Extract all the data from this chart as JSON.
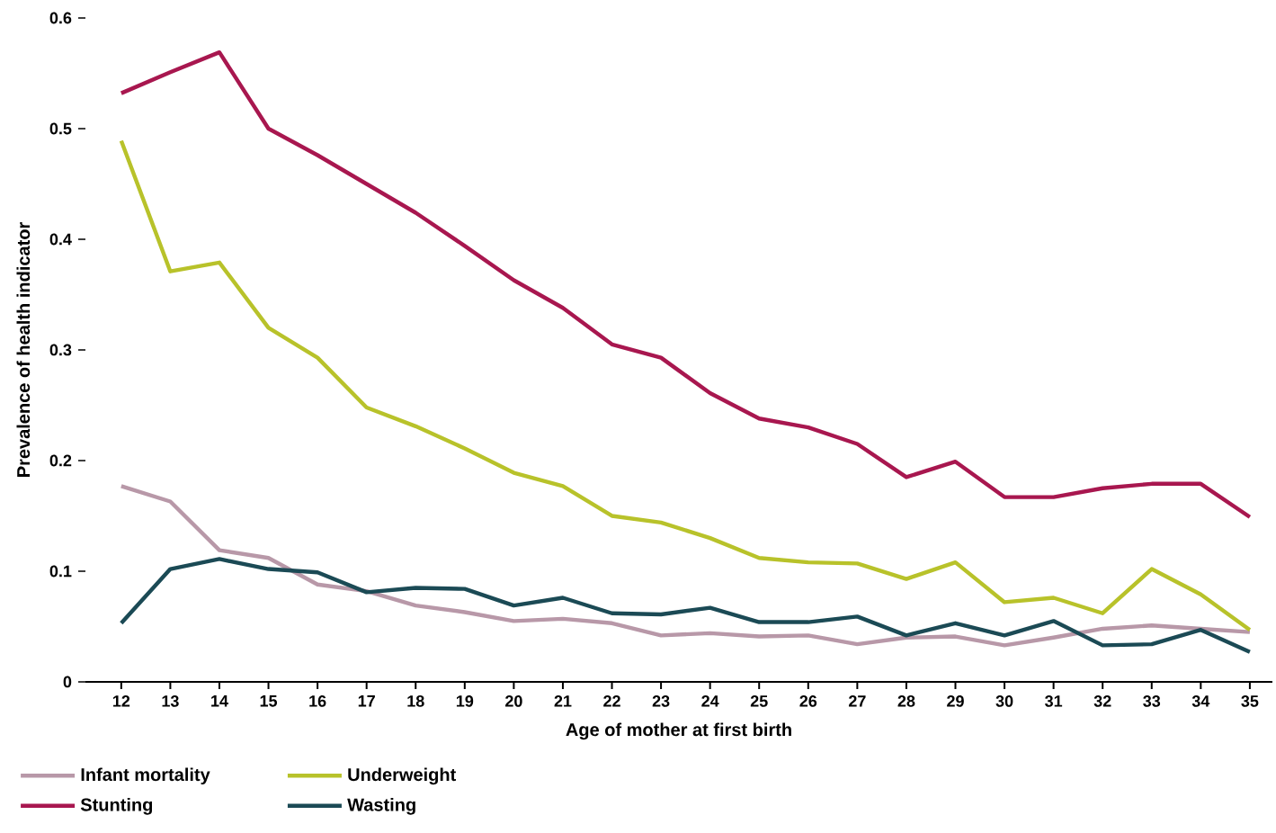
{
  "chart_data": {
    "type": "line",
    "xlabel": "Age of mother at first birth",
    "ylabel": "Prevalence of health indicator",
    "x": [
      12,
      13,
      14,
      15,
      16,
      17,
      18,
      19,
      20,
      21,
      22,
      23,
      24,
      25,
      26,
      27,
      28,
      29,
      30,
      31,
      32,
      33,
      34,
      35
    ],
    "series": [
      {
        "name": "Infant mortality",
        "color": "#b898a8",
        "values": [
          0.177,
          0.163,
          0.119,
          0.112,
          0.088,
          0.082,
          0.069,
          0.063,
          0.055,
          0.057,
          0.053,
          0.042,
          0.044,
          0.041,
          0.042,
          0.034,
          0.04,
          0.041,
          0.033,
          0.04,
          0.048,
          0.051,
          0.048,
          0.045
        ]
      },
      {
        "name": "Underweight",
        "color": "#b8c22a",
        "values": [
          0.489,
          0.371,
          0.379,
          0.32,
          0.293,
          0.248,
          0.231,
          0.211,
          0.189,
          0.177,
          0.15,
          0.144,
          0.13,
          0.112,
          0.108,
          0.107,
          0.093,
          0.108,
          0.072,
          0.076,
          0.062,
          0.102,
          0.079,
          0.047
        ]
      },
      {
        "name": "Stunting",
        "color": "#a8174f",
        "values": [
          0.532,
          0.551,
          0.569,
          0.5,
          0.476,
          0.45,
          0.424,
          0.394,
          0.363,
          0.338,
          0.305,
          0.293,
          0.261,
          0.238,
          0.23,
          0.215,
          0.185,
          0.199,
          0.167,
          0.167,
          0.175,
          0.179,
          0.179,
          0.149
        ]
      },
      {
        "name": "Wasting",
        "color": "#1b4a55",
        "values": [
          0.053,
          0.102,
          0.111,
          0.102,
          0.099,
          0.081,
          0.085,
          0.084,
          0.069,
          0.076,
          0.062,
          0.061,
          0.067,
          0.054,
          0.054,
          0.059,
          0.042,
          0.053,
          0.042,
          0.055,
          0.033,
          0.034,
          0.047,
          0.027
        ]
      }
    ],
    "xlim": [
      11.27,
      35.46
    ],
    "ylim": [
      0,
      0.6
    ],
    "xticks": [
      12,
      13,
      14,
      15,
      16,
      17,
      18,
      19,
      20,
      21,
      22,
      23,
      24,
      25,
      26,
      27,
      28,
      29,
      30,
      31,
      32,
      33,
      34,
      35
    ],
    "yticks": [
      0,
      0.1,
      0.2,
      0.3,
      0.4,
      0.5,
      0.6
    ],
    "legend": "bottom left"
  }
}
